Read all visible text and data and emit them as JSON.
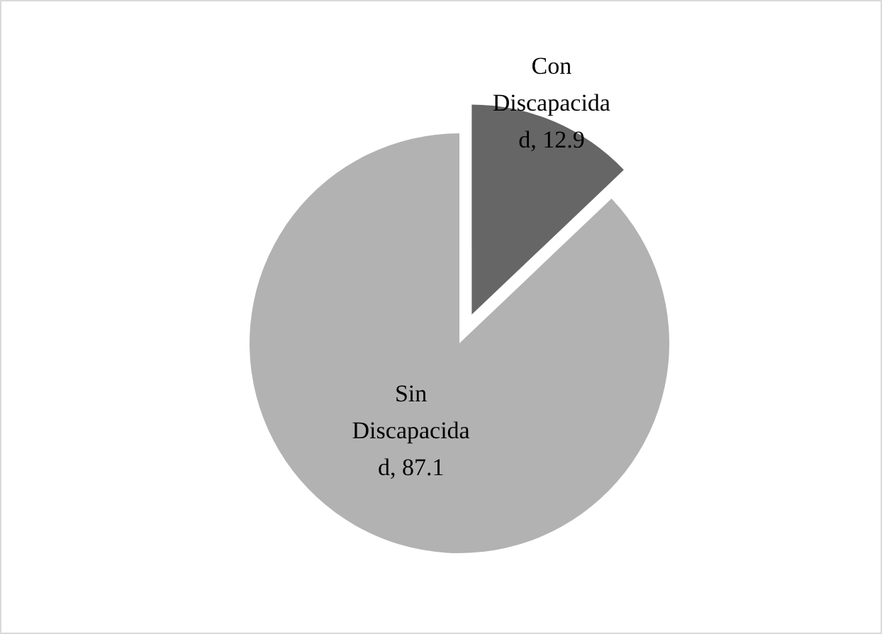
{
  "chart_data": {
    "type": "pie",
    "categories": [
      "Con Discapacidad",
      "Sin Discapacidad"
    ],
    "values": [
      12.9,
      87.1
    ],
    "colors": [
      "#666666",
      "#b2b2b2"
    ],
    "value_labels": [
      ", 12.9",
      ", 87.1"
    ]
  }
}
